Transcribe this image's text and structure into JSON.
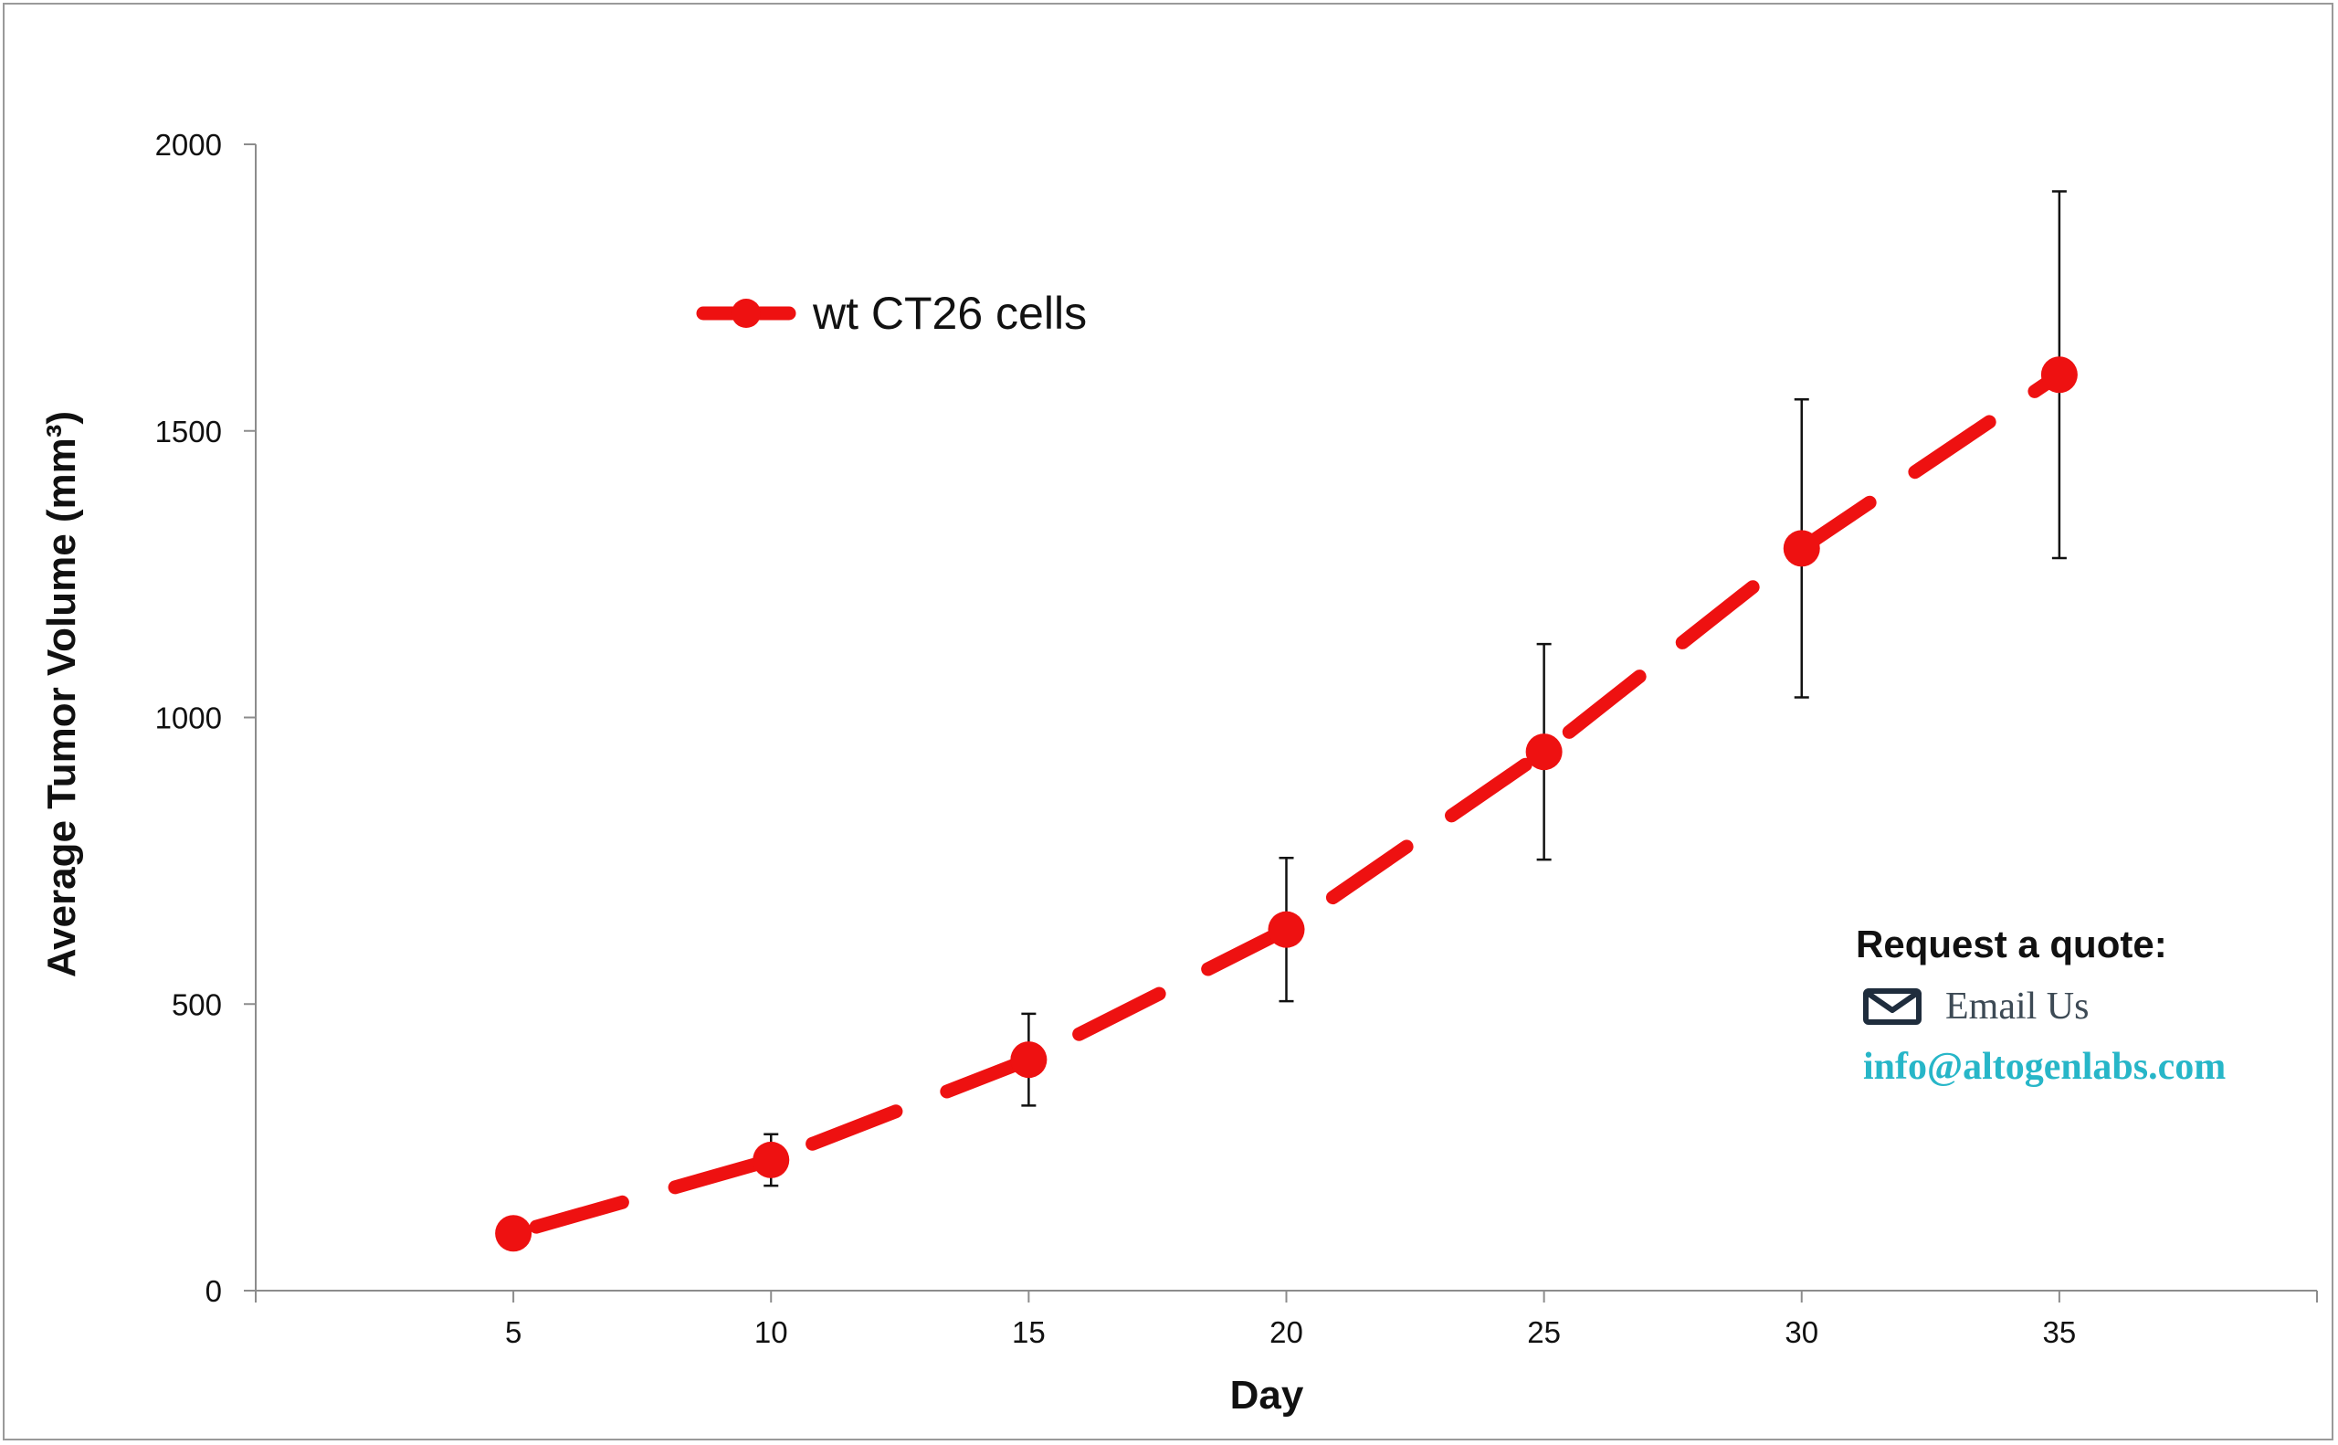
{
  "chart_data": {
    "type": "line",
    "title": "",
    "xlabel": "Day",
    "ylabel": "Average Tumor Volume (mm³)",
    "xlim": [
      0,
      40
    ],
    "ylim": [
      0,
      2000
    ],
    "x_ticks": [
      5,
      10,
      15,
      20,
      25,
      30,
      35
    ],
    "y_ticks": [
      0,
      500,
      1000,
      1500,
      2000
    ],
    "grid": false,
    "legend": "upper-left",
    "series": [
      {
        "name": "wt CT26 cells",
        "color": "#ee1111",
        "line_style": "dashed",
        "marker": "circle",
        "x": [
          5,
          10,
          15,
          20,
          25,
          30,
          35
        ],
        "y": [
          100,
          228,
          403,
          630,
          940,
          1295,
          1598
        ],
        "error": [
          0,
          45,
          80,
          125,
          188,
          260,
          320
        ]
      }
    ]
  },
  "contact": {
    "heading": "Request a quote:",
    "email_label": "Email Us",
    "email_address": "info@altogenlabs.com",
    "icon": "envelope-icon",
    "link_color": "#27b6c8"
  }
}
